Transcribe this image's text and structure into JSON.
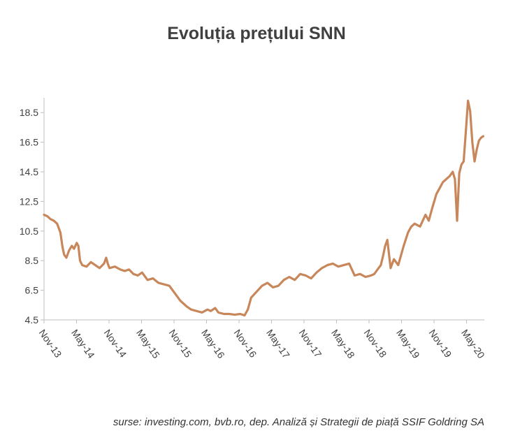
{
  "title": "Evoluția prețului SNN",
  "source": "surse: investing.com, bvb.ro,  dep. Analiză și Strategii de piață SSIF Goldring SA",
  "chart_data": {
    "type": "line",
    "title": "Evoluția prețului SNN",
    "xlabel": "",
    "ylabel": "",
    "ylim": [
      4.5,
      19.5
    ],
    "xlim": [
      0,
      80.8
    ],
    "yticks": [
      4.5,
      6.5,
      8.5,
      10.5,
      12.5,
      14.5,
      16.5,
      18.5
    ],
    "ytick_labels": [
      "4.5",
      "6.5",
      "8.5",
      "10.5",
      "12.5",
      "14.5",
      "16.5",
      "18.5"
    ],
    "xtick_labels": [
      "Nov-13",
      "May-14",
      "Nov-14",
      "May-15",
      "Nov-15",
      "May-16",
      "Nov-16",
      "May-17",
      "Nov-17",
      "May-18",
      "Nov-18",
      "May-19",
      "Nov-19",
      "May-20"
    ],
    "grid": false,
    "legend": "none",
    "color": "#c8875a",
    "series": [
      {
        "x": [
          0,
          0.6,
          1.2,
          1.8,
          2.4,
          3.0,
          3.4,
          3.7,
          4.1,
          4.6,
          5.1,
          5.5,
          6.0,
          6.3,
          6.6,
          7.0,
          7.8,
          8.6,
          9.4,
          10.2,
          11.0,
          11.4,
          11.7,
          12.0,
          13.0,
          14.0,
          14.8,
          15.6,
          16.4,
          17.2,
          18.0,
          19.0,
          20.0,
          21.0,
          22.0,
          23.0,
          24.0,
          25.0,
          25.6,
          26.2,
          27.0,
          28.0,
          29.0,
          30.0,
          30.6,
          31.4,
          32.0,
          33.0,
          34.0,
          35.0,
          36.0,
          36.8,
          37.4,
          38.0,
          39.0,
          40.0,
          41.0,
          42.0,
          43.0,
          44.0,
          45.0,
          46.0,
          47.0,
          48.0,
          49.0,
          50.0,
          51.0,
          52.0,
          53.0,
          54.0,
          55.0,
          56.0,
          57.0,
          58.0,
          59.0,
          60.0,
          60.6,
          61.0,
          61.4,
          61.8,
          62.2,
          62.6,
          63.0,
          63.6,
          64.2,
          65.0,
          66.0,
          66.8,
          67.4,
          68.0,
          69.0,
          70.0,
          70.6,
          71.2,
          72.0,
          72.6,
          73.2,
          73.8,
          74.4,
          75.0,
          75.4,
          75.8,
          76.2,
          76.6,
          77.0,
          77.4,
          77.8,
          78.2,
          78.6,
          79.0,
          79.4,
          79.8,
          80.2,
          80.6
        ],
        "y": [
          11.6,
          11.5,
          11.3,
          11.2,
          11.0,
          10.4,
          9.4,
          8.9,
          8.7,
          9.2,
          9.5,
          9.3,
          9.7,
          9.5,
          8.5,
          8.2,
          8.1,
          8.4,
          8.2,
          8.0,
          8.3,
          8.7,
          8.3,
          8.0,
          8.1,
          7.9,
          7.8,
          7.9,
          7.6,
          7.5,
          7.7,
          7.2,
          7.3,
          7.0,
          6.9,
          6.8,
          6.3,
          5.8,
          5.6,
          5.4,
          5.2,
          5.1,
          5.0,
          5.2,
          5.1,
          5.3,
          5.0,
          4.9,
          4.9,
          4.85,
          4.9,
          4.8,
          5.2,
          6.0,
          6.4,
          6.8,
          7.0,
          6.7,
          6.8,
          7.2,
          7.4,
          7.2,
          7.6,
          7.5,
          7.3,
          7.7,
          8.0,
          8.2,
          8.3,
          8.1,
          8.2,
          8.3,
          7.5,
          7.6,
          7.4,
          7.5,
          7.6,
          7.8,
          8.0,
          8.2,
          8.8,
          9.5,
          9.9,
          8.0,
          8.6,
          8.2,
          9.5,
          10.4,
          10.8,
          11.0,
          10.8,
          11.6,
          11.2,
          12.0,
          13.0,
          13.4,
          13.8,
          14.0,
          14.2,
          14.5,
          14.0,
          11.2,
          14.4,
          15.0,
          15.2,
          17.2,
          19.3,
          18.6,
          16.5,
          15.2,
          16.0,
          16.6,
          16.8,
          16.9
        ]
      }
    ]
  }
}
